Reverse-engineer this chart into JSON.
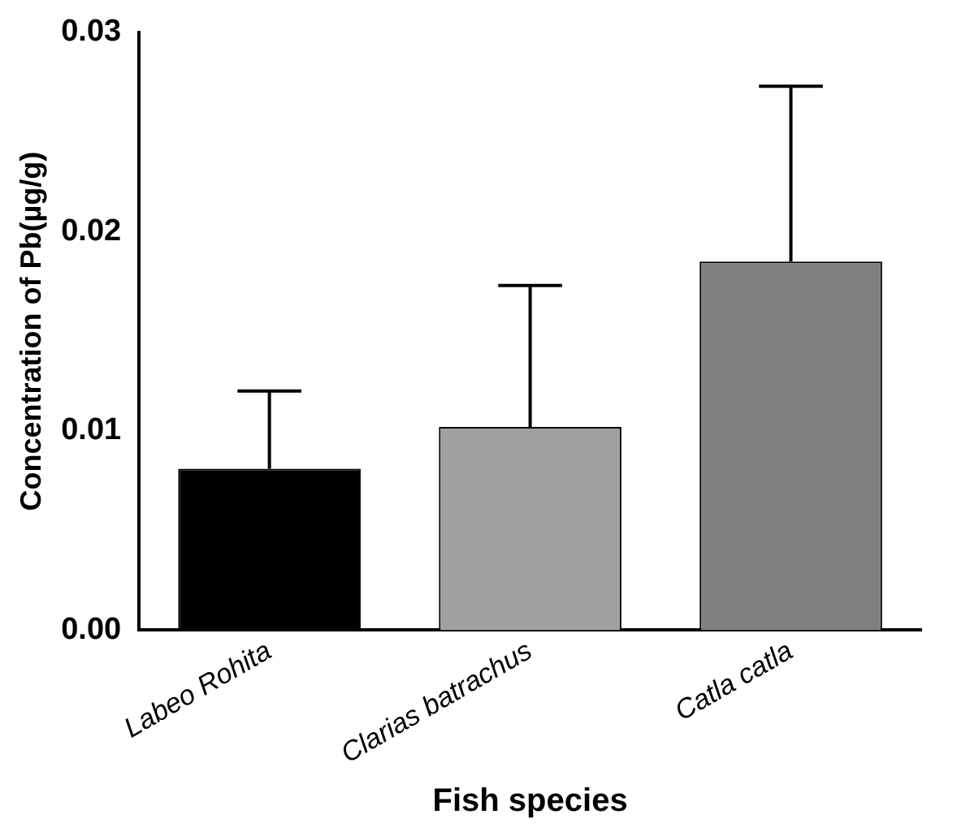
{
  "chart_data": {
    "type": "bar",
    "xlabel": "Fish species",
    "ylabel": "Concentration of Pb(µg/g)",
    "categories": [
      "Labeo Rohita",
      "Clarias batrachus",
      "Catla catla"
    ],
    "values": [
      0.0081,
      0.0102,
      0.0185
    ],
    "colors": [
      "#000000",
      "#a0a0a0",
      "#7f7f7f"
    ],
    "errors": [
      [
        0.0081,
        0.012
      ],
      [
        0.0102,
        0.0173
      ],
      [
        0.0185,
        0.0273
      ]
    ],
    "ylim": [
      0,
      0.03
    ],
    "yticks": [
      {
        "value": 0,
        "label": "0.00"
      },
      0.01,
      0.02,
      0.03
    ],
    "grid": false,
    "legend": false
  }
}
